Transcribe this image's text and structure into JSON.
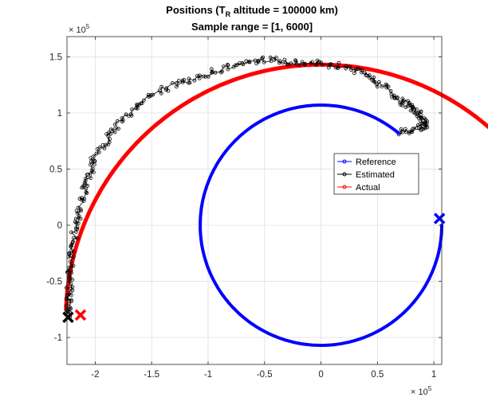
{
  "chart_data": {
    "type": "line",
    "title_prefix": "Positions (T",
    "title_sub": "R",
    "title_suffix": " altitude = 100000 km)",
    "subtitle": "Sample range = [1, 6000]",
    "x_exponent_base": "× 10",
    "x_exponent_power": "5",
    "y_exponent_base": "× 10",
    "y_exponent_power": "5",
    "xlim": [
      -2.25,
      1.07
    ],
    "ylim": [
      -1.24,
      1.68
    ],
    "x_ticks": [
      -2,
      -1.5,
      -1,
      -0.5,
      0,
      0.5,
      1
    ],
    "x_tick_labels": [
      "-2",
      "-1.5",
      "-1",
      "-0.5",
      "0",
      "0.5",
      "1"
    ],
    "y_ticks": [
      -1,
      -0.5,
      0,
      0.5,
      1,
      1.5
    ],
    "y_tick_labels": [
      "-1",
      "-0.5",
      "0",
      "0.5",
      "1",
      "1.5"
    ],
    "grid": true,
    "legend_position": "right-middle",
    "series": [
      {
        "name": "Reference",
        "color": "#0000ff",
        "style": "arc",
        "center": [
          0,
          0
        ],
        "radius": 1.07,
        "start_angle_deg": 50,
        "end_angle_deg": 360,
        "end_marker": "x",
        "end_point": [
          1.05,
          0.06
        ]
      },
      {
        "name": "Estimated",
        "color": "#000000",
        "style": "noisy-markers",
        "points": [
          [
            0.7,
            0.82
          ],
          [
            0.82,
            0.86
          ],
          [
            0.95,
            0.88
          ],
          [
            0.9,
            0.95
          ],
          [
            0.85,
            1.0
          ],
          [
            0.8,
            1.06
          ],
          [
            0.7,
            1.12
          ],
          [
            0.6,
            1.22
          ],
          [
            0.45,
            1.3
          ],
          [
            0.3,
            1.38
          ],
          [
            0.1,
            1.43
          ],
          [
            -0.1,
            1.45
          ],
          [
            -0.3,
            1.46
          ],
          [
            -0.5,
            1.47
          ],
          [
            -0.7,
            1.44
          ],
          [
            -0.9,
            1.38
          ],
          [
            -1.1,
            1.32
          ],
          [
            -1.3,
            1.25
          ],
          [
            -1.5,
            1.16
          ],
          [
            -1.65,
            1.03
          ],
          [
            -1.8,
            0.9
          ],
          [
            -1.9,
            0.75
          ],
          [
            -2.0,
            0.6
          ],
          [
            -2.05,
            0.45
          ],
          [
            -2.1,
            0.3
          ],
          [
            -2.15,
            0.12
          ],
          [
            -2.18,
            -0.05
          ],
          [
            -2.2,
            -0.2
          ],
          [
            -2.22,
            -0.38
          ],
          [
            -2.23,
            -0.55
          ],
          [
            -2.23,
            -0.7
          ],
          [
            -2.24,
            -0.82
          ]
        ],
        "end_marker": "x",
        "end_point": [
          -2.24,
          -0.82
        ]
      },
      {
        "name": "Actual",
        "color": "#ff0000",
        "style": "arc",
        "center": [
          0,
          -0.83
        ],
        "radius": 2.26,
        "start_angle_deg": 2,
        "end_angle_deg": 178,
        "end_marker": "x",
        "end_point": [
          -2.13,
          -0.8
        ]
      }
    ]
  }
}
